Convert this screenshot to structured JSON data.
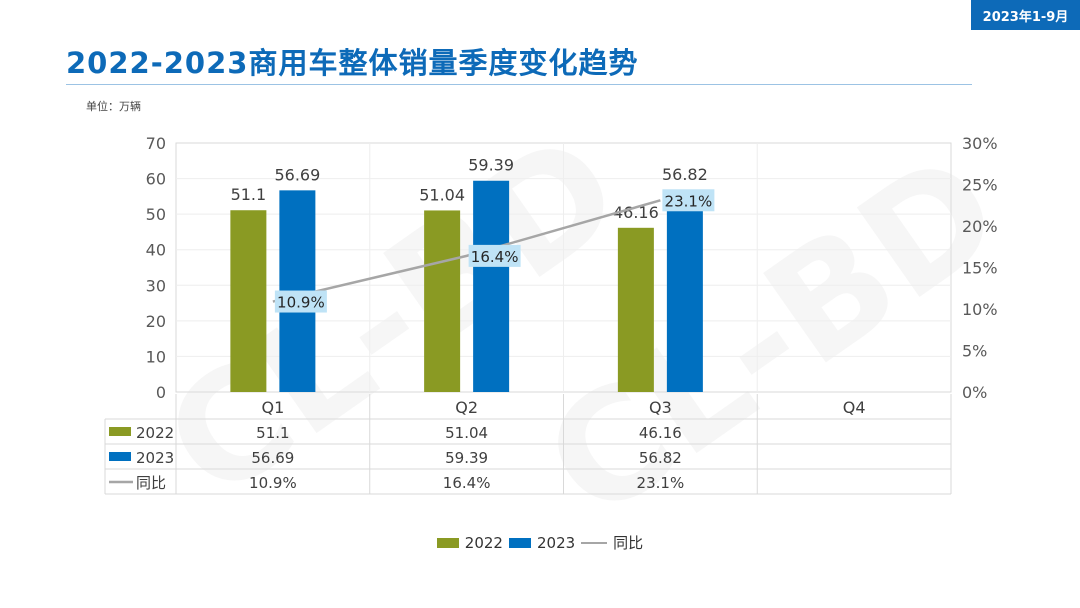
{
  "badge": "2023年1-9月",
  "title": "2022-2023商用车整体销量季度变化趋势",
  "unit_label": "单位：万辆",
  "watermark": "CL-BD",
  "colors": {
    "s2022": "#8a9a23",
    "s2023": "#0070c0",
    "yoy": "#a6a6a6",
    "label_bg": "#bfe3f6",
    "title": "#0d6ab8"
  },
  "chart_data": {
    "type": "bar",
    "categories": [
      "Q1",
      "Q2",
      "Q3",
      "Q4"
    ],
    "series": [
      {
        "name": "2022",
        "type": "bar",
        "values": [
          51.1,
          51.04,
          46.16,
          null
        ]
      },
      {
        "name": "2023",
        "type": "bar",
        "values": [
          56.69,
          59.39,
          56.82,
          null
        ]
      },
      {
        "name": "同比",
        "type": "line",
        "axis": "right",
        "values": [
          10.9,
          16.4,
          23.1,
          null
        ],
        "labels": [
          "10.9%",
          "16.4%",
          "23.1%",
          ""
        ]
      }
    ],
    "ylim": [
      0,
      70
    ],
    "yticks": [
      "0",
      "10",
      "20",
      "30",
      "40",
      "50",
      "60",
      "70"
    ],
    "y2lim": [
      0,
      30
    ],
    "y2ticks": [
      "0%",
      "5%",
      "10%",
      "15%",
      "20%",
      "25%",
      "30%"
    ],
    "data_table": {
      "rows": [
        {
          "name": "2022",
          "cells": [
            "51.1",
            "51.04",
            "46.16",
            ""
          ]
        },
        {
          "name": "2023",
          "cells": [
            "56.69",
            "59.39",
            "56.82",
            ""
          ]
        },
        {
          "name": "同比",
          "cells": [
            "10.9%",
            "16.4%",
            "23.1%",
            ""
          ]
        }
      ]
    },
    "legend": "bottom",
    "grid": true
  }
}
